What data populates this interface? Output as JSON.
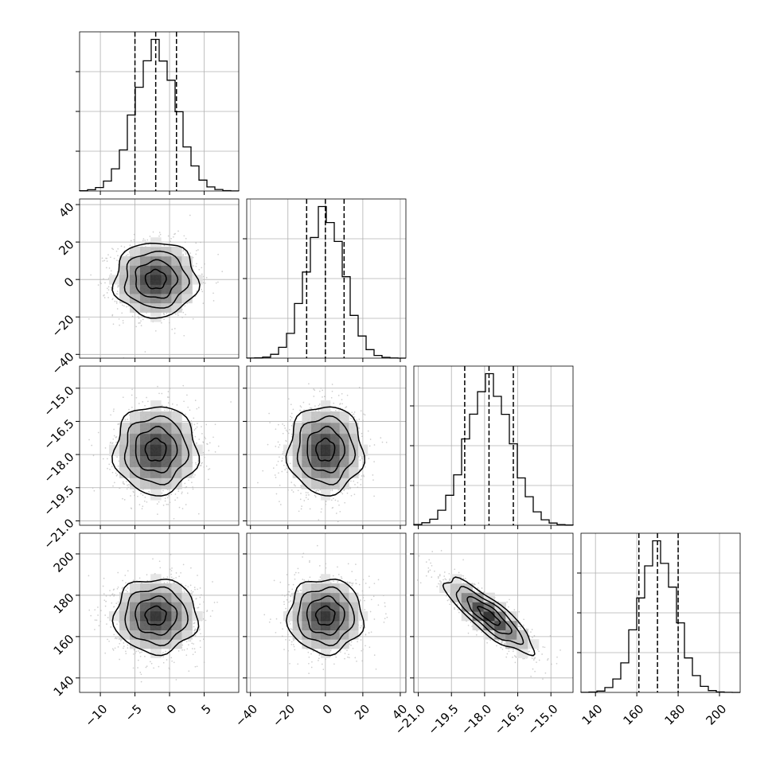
{
  "chart_data": {
    "type": "scatter",
    "title": "",
    "kind": "corner",
    "parameters": [
      {
        "range": [
          -13,
          10
        ],
        "ticks": [
          -10,
          -5,
          0,
          5
        ],
        "tick_labels": [
          "−10",
          "−5",
          "0",
          "5"
        ],
        "mean": -2.0,
        "sigma": 3.0,
        "quantiles": [
          -5.0,
          -2.0,
          1.0
        ]
      },
      {
        "range": [
          -42,
          43
        ],
        "ticks": [
          -40,
          -20,
          0,
          20,
          40
        ],
        "tick_labels": [
          "−40",
          "−20",
          "0",
          "20",
          "40"
        ],
        "mean": 0.0,
        "sigma": 10.0,
        "quantiles": [
          -10.0,
          0.0,
          10.0
        ]
      },
      {
        "range": [
          -21.2,
          -14.0
        ],
        "ticks": [
          -21.0,
          -19.5,
          -18.0,
          -16.5,
          -15.0
        ],
        "tick_labels": [
          "−21.0",
          "−19.5",
          "−18.0",
          "−16.5",
          "−15.0"
        ],
        "mean": -17.8,
        "sigma": 1.0,
        "quantiles": [
          -18.9,
          -17.8,
          -16.7
        ]
      },
      {
        "range": [
          133,
          210
        ],
        "ticks": [
          140,
          160,
          180,
          200
        ],
        "tick_labels": [
          "140",
          "160",
          "180",
          "200"
        ],
        "mean": 170.0,
        "sigma": 9.0,
        "quantiles": [
          161.0,
          170.0,
          180.0
        ]
      }
    ],
    "correlations": [
      [
        2,
        3,
        -0.85
      ]
    ],
    "contour_levels": [
      0.5,
      1.0,
      1.5,
      2.0
    ],
    "histogram_bins": 20,
    "grid": true,
    "colors": {
      "points": "#b8b8b8",
      "contour": "#000000",
      "density_dark": "#000000",
      "grid": "#b0b0b0",
      "frame": "#000000"
    }
  }
}
